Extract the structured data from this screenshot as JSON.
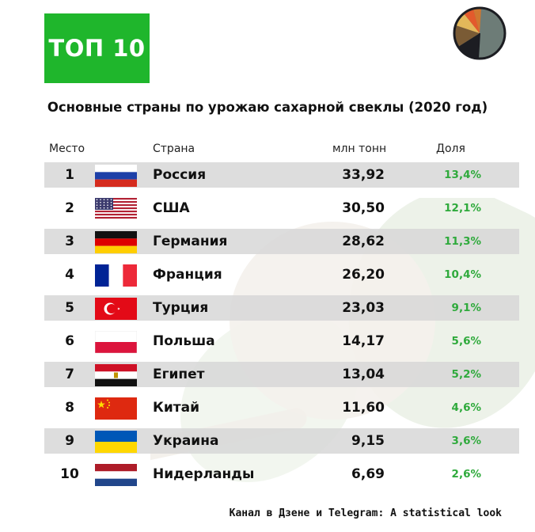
{
  "badge": "ТОП 10",
  "title": "Основные страны по урожаю сахарной свеклы (2020 год)",
  "footer": "Канал в Дзене и Telegram: A statistical look",
  "headers": {
    "place": "Место",
    "country": "Страна",
    "value": "млн тонн",
    "share": "Доля"
  },
  "colors": {
    "badge": "#1fb62c",
    "share_text": "#2faa3c",
    "row_shade": "#d7d7d7"
  },
  "logo": {
    "name": "pie-chart-logo-icon",
    "slices": [
      "#6d7c77",
      "#1c1d22",
      "#7a5b35",
      "#e3b85a",
      "#e35a2c",
      "#d1772f"
    ]
  },
  "chart_data": {
    "type": "table",
    "title": "Основные страны по урожаю сахарной свеклы (2020 год)",
    "columns": [
      "Место",
      "Страна",
      "млн тонн",
      "Доля"
    ],
    "rows": [
      {
        "rank": "1",
        "country": "Россия",
        "flag": "russia-flag-icon",
        "value": "33,92",
        "share": "13,4%"
      },
      {
        "rank": "2",
        "country": "США",
        "flag": "usa-flag-icon",
        "value": "30,50",
        "share": "12,1%"
      },
      {
        "rank": "3",
        "country": "Германия",
        "flag": "germany-flag-icon",
        "value": "28,62",
        "share": "11,3%"
      },
      {
        "rank": "4",
        "country": "Франция",
        "flag": "france-flag-icon",
        "value": "26,20",
        "share": "10,4%"
      },
      {
        "rank": "5",
        "country": "Турция",
        "flag": "turkey-flag-icon",
        "value": "23,03",
        "share": "9,1%"
      },
      {
        "rank": "6",
        "country": "Польша",
        "flag": "poland-flag-icon",
        "value": "14,17",
        "share": "5,6%"
      },
      {
        "rank": "7",
        "country": "Египет",
        "flag": "egypt-flag-icon",
        "value": "13,04",
        "share": "5,2%"
      },
      {
        "rank": "8",
        "country": "Китай",
        "flag": "china-flag-icon",
        "value": "11,60",
        "share": "4,6%"
      },
      {
        "rank": "9",
        "country": "Украина",
        "flag": "ukraine-flag-icon",
        "value": "9,15",
        "share": "3,6%"
      },
      {
        "rank": "10",
        "country": "Нидерланды",
        "flag": "netherlands-flag-icon",
        "value": "6,69",
        "share": "2,6%"
      }
    ]
  }
}
